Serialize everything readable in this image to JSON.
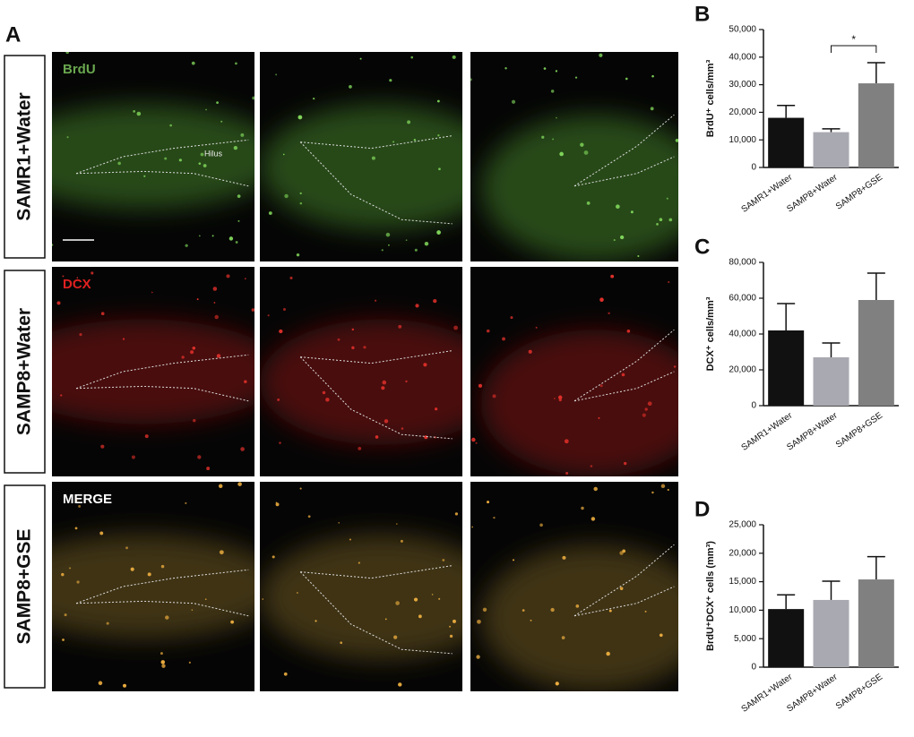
{
  "figure": {
    "panel": "A",
    "rows": [
      "SAMR1+Water",
      "SAMP8+Water",
      "SAMP8+GSE"
    ],
    "channels": [
      "BrdU",
      "DCX",
      "MERGE"
    ],
    "region": "Hilus"
  },
  "chart_data": [
    {
      "type": "bar",
      "panel": "B",
      "ylabel": "BrdU⁺ cells/mm³",
      "categories": [
        "SAMR1+Water",
        "SAMP8+Water",
        "SAMP8+GSE"
      ],
      "values": [
        18000,
        12800,
        30500
      ],
      "errors": [
        4500,
        1200,
        7500
      ],
      "colors": [
        "#111111",
        "#a9a9b1",
        "#808080"
      ],
      "ylim": [
        0,
        50000
      ],
      "yticks": [
        0,
        {
          "value": 10000,
          "label": "10,000"
        },
        {
          "value": 20000,
          "label": "20,000"
        },
        {
          "value": 30000,
          "label": "30,000"
        },
        {
          "value": 40000,
          "label": "40,000"
        },
        {
          "value": 50000,
          "label": "50,000"
        }
      ],
      "annotation": "*"
    },
    {
      "type": "bar",
      "panel": "C",
      "ylabel": "DCX⁺ cells/mm³",
      "categories": [
        "SAMR1+Water",
        "SAMP8+Water",
        "SAMP8+GSE"
      ],
      "values": [
        42000,
        27000,
        59000
      ],
      "errors": [
        15000,
        8000,
        15000
      ],
      "colors": [
        "#111111",
        "#a9a9b1",
        "#808080"
      ],
      "ylim": [
        0,
        80000
      ],
      "yticks": [
        0,
        {
          "value": 20000,
          "label": "20,000"
        },
        {
          "value": 40000,
          "label": "40,000"
        },
        {
          "value": 60000,
          "label": "60,000"
        },
        {
          "value": 80000,
          "label": "80,000"
        }
      ]
    },
    {
      "type": "bar",
      "panel": "D",
      "ylabel": "BrdU⁺DCX⁺ cells (mm³)",
      "categories": [
        "SAMR1+Water",
        "SAMP8+Water",
        "SAMP8+GSE"
      ],
      "values": [
        10200,
        11800,
        15400
      ],
      "errors": [
        2500,
        3300,
        4000
      ],
      "colors": [
        "#111111",
        "#a9a9b1",
        "#808080"
      ],
      "ylim": [
        0,
        25000
      ],
      "yticks": [
        0,
        {
          "value": 5000,
          "label": "5,000"
        },
        {
          "value": 10000,
          "label": "10,000"
        },
        {
          "value": 15000,
          "label": "15,000"
        },
        {
          "value": 20000,
          "label": "20,000"
        },
        {
          "value": 25000,
          "label": "25,000"
        }
      ]
    }
  ]
}
